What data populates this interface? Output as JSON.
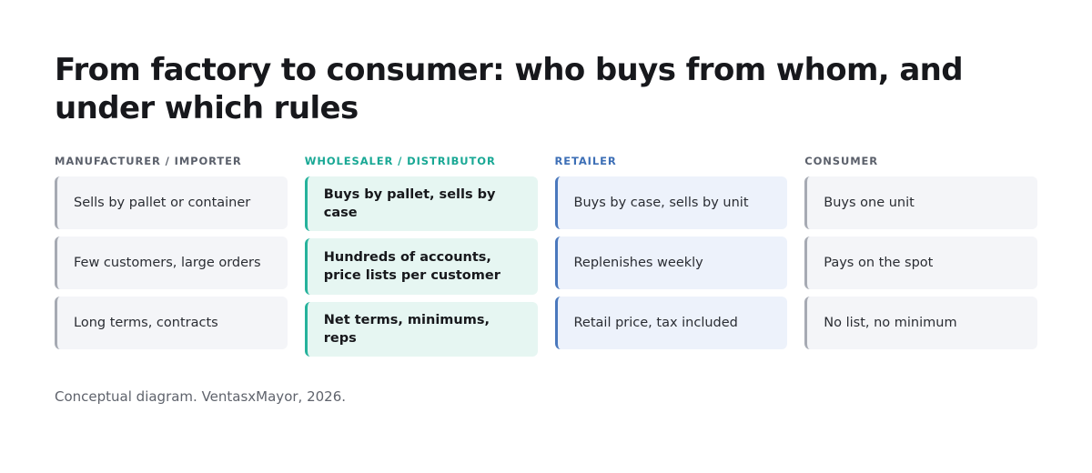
{
  "title": "From factory to consumer: who buys from whom, and under which rules",
  "columns": [
    {
      "header": "MANUFACTURER / IMPORTER",
      "accent": "#a6aab3",
      "cells": [
        "Sells by pallet or container",
        "Few customers, large orders",
        "Long terms, contracts"
      ]
    },
    {
      "header": "WHOLESALER / DISTRIBUTOR",
      "accent": "#26b29c",
      "cells": [
        "Buys by pallet, sells by case",
        "Hundreds of accounts, price lists per customer",
        "Net terms, minimums, reps"
      ]
    },
    {
      "header": "RETAILER",
      "accent": "#4a78bd",
      "cells": [
        "Buys by case, sells by unit",
        "Replenishes weekly",
        "Retail price, tax included"
      ]
    },
    {
      "header": "CONSUMER",
      "accent": "#a6aab3",
      "cells": [
        "Buys one unit",
        "Pays on the spot",
        "No list, no minimum"
      ]
    }
  ],
  "footer": "Conceptual diagram. VentasxMayor, 2026."
}
